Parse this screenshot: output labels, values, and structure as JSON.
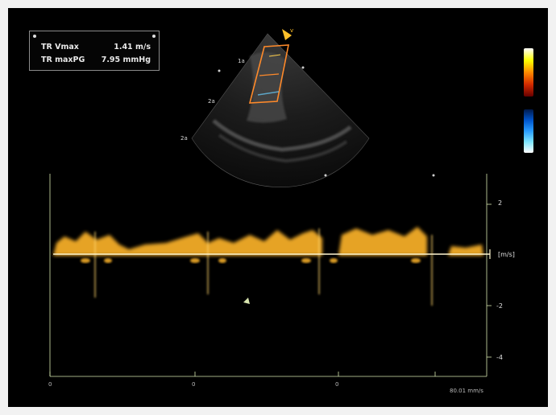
{
  "measurements": [
    {
      "label": "TR Vmax",
      "value": "1.41 m/s"
    },
    {
      "label": "TR maxPG",
      "value": "7.95 mmHg"
    }
  ],
  "sector_labels": [
    "1a",
    "2a",
    "2a",
    "v"
  ],
  "velocity_scale": {
    "unit": "[m/s]",
    "ticks": [
      "2",
      "-2",
      "-4"
    ]
  },
  "time_axis": {
    "ticks": [
      "0",
      "0",
      "0"
    ],
    "readout": "80.01 mm/s"
  },
  "colors": {
    "doppler": "#ffb52a",
    "baseline": "#fff6cf",
    "color_map_positive": "#ff8a00",
    "color_map_negative": "#2a9dff"
  },
  "icons": {
    "marker": "small-circle-marker"
  }
}
